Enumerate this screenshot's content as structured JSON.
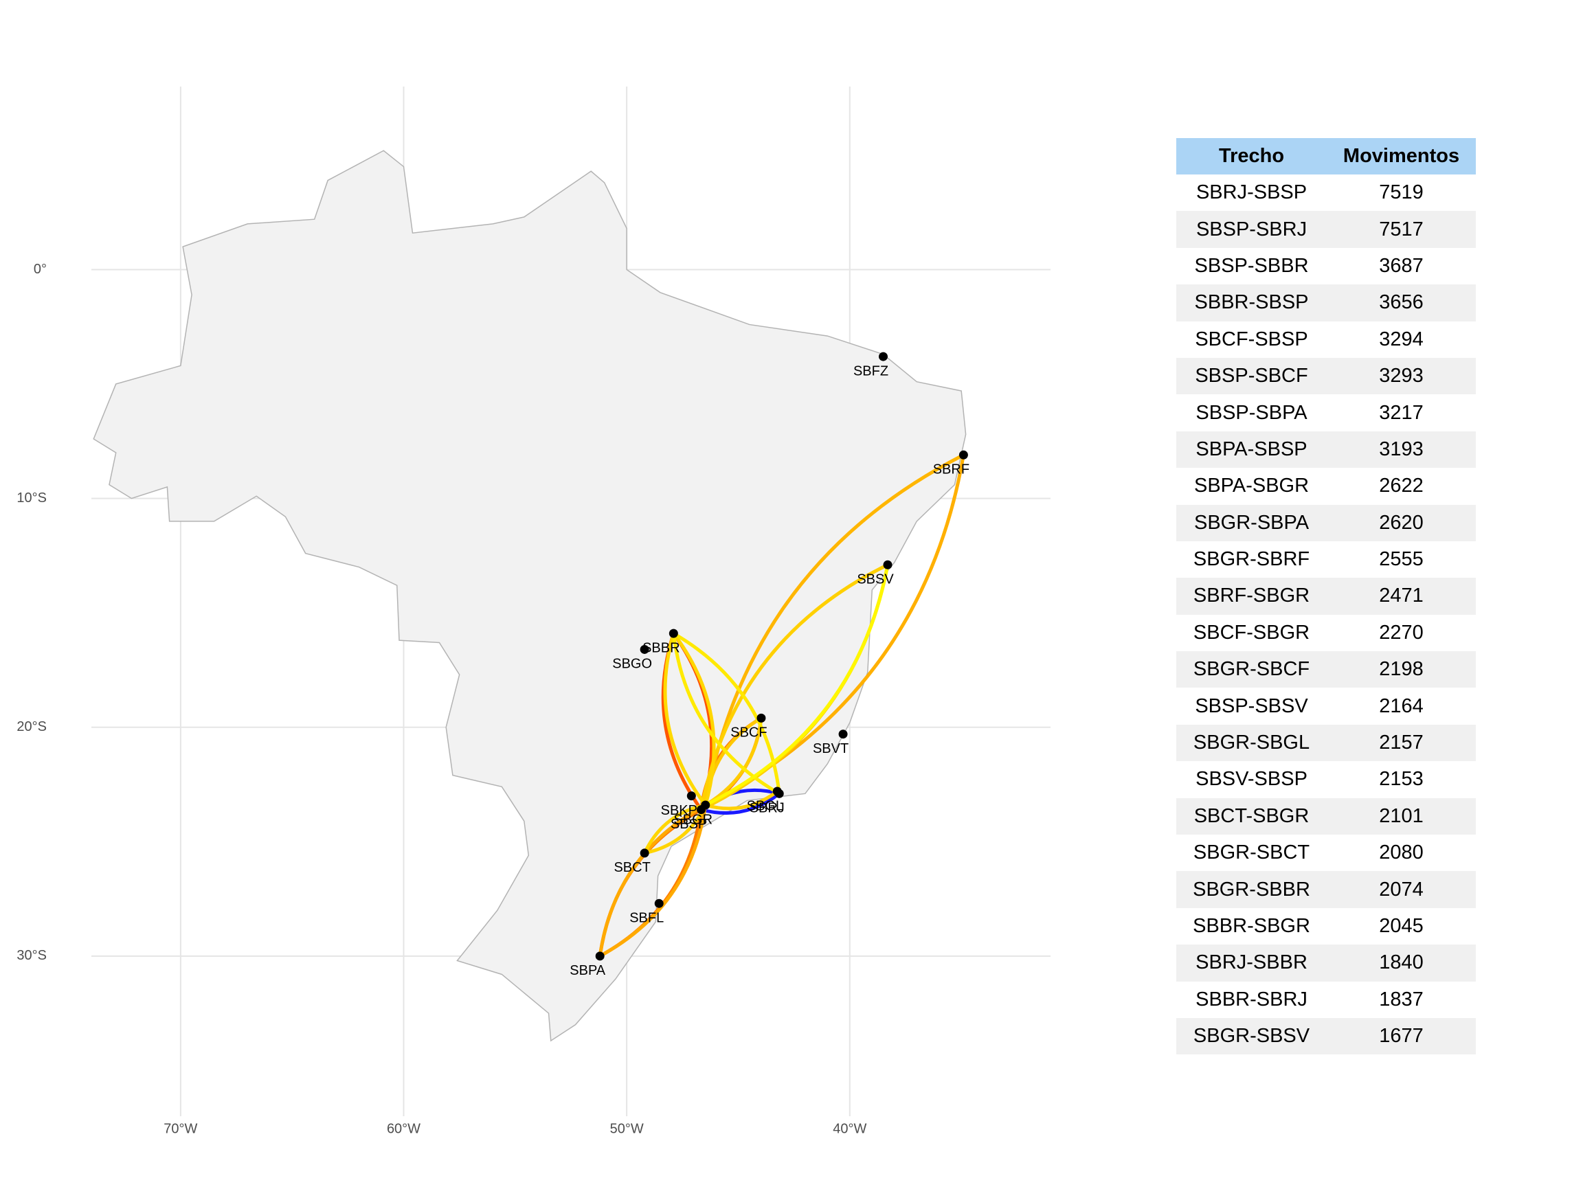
{
  "map": {
    "xlim": [
      -74,
      -31
    ],
    "ylim": [
      -37,
      8
    ],
    "xticks": [
      {
        "value": -70,
        "label": "70°W"
      },
      {
        "value": -60,
        "label": "60°W"
      },
      {
        "value": -50,
        "label": "50°W"
      },
      {
        "value": -40,
        "label": "40°W"
      }
    ],
    "yticks": [
      {
        "value": 0,
        "label": "0°"
      },
      {
        "value": -10,
        "label": "10°S"
      },
      {
        "value": -20,
        "label": "20°S"
      },
      {
        "value": -30,
        "label": "30°S"
      }
    ],
    "airports": [
      {
        "code": "SBFZ",
        "lon": -38.5,
        "lat": -3.8
      },
      {
        "code": "SBRF",
        "lon": -34.9,
        "lat": -8.1
      },
      {
        "code": "SBSV",
        "lon": -38.3,
        "lat": -12.9
      },
      {
        "code": "SBBR",
        "lon": -47.9,
        "lat": -15.9
      },
      {
        "code": "SBGO",
        "lon": -49.2,
        "lat": -16.6
      },
      {
        "code": "SBCF",
        "lon": -43.97,
        "lat": -19.6
      },
      {
        "code": "SBVT",
        "lon": -40.3,
        "lat": -20.3
      },
      {
        "code": "SBGL",
        "lon": -43.25,
        "lat": -22.8
      },
      {
        "code": "SBRJ",
        "lon": -43.16,
        "lat": -22.9
      },
      {
        "code": "SBKP",
        "lon": -47.1,
        "lat": -23.0
      },
      {
        "code": "SBGR",
        "lon": -46.47,
        "lat": -23.4
      },
      {
        "code": "SBSP",
        "lon": -46.66,
        "lat": -23.6
      },
      {
        "code": "SBCT",
        "lon": -49.2,
        "lat": -25.5
      },
      {
        "code": "SBFL",
        "lon": -48.55,
        "lat": -27.7
      },
      {
        "code": "SBPA",
        "lon": -51.2,
        "lat": -30.0
      }
    ]
  },
  "table": {
    "header": [
      "Trecho",
      "Movimentos"
    ],
    "rows": [
      [
        "SBRJ-SBSP",
        7519
      ],
      [
        "SBSP-SBRJ",
        7517
      ],
      [
        "SBSP-SBBR",
        3687
      ],
      [
        "SBBR-SBSP",
        3656
      ],
      [
        "SBCF-SBSP",
        3294
      ],
      [
        "SBSP-SBCF",
        3293
      ],
      [
        "SBSP-SBPA",
        3217
      ],
      [
        "SBPA-SBSP",
        3193
      ],
      [
        "SBPA-SBGR",
        2622
      ],
      [
        "SBGR-SBPA",
        2620
      ],
      [
        "SBGR-SBRF",
        2555
      ],
      [
        "SBRF-SBGR",
        2471
      ],
      [
        "SBCF-SBGR",
        2270
      ],
      [
        "SBGR-SBCF",
        2198
      ],
      [
        "SBSP-SBSV",
        2164
      ],
      [
        "SBGR-SBGL",
        2157
      ],
      [
        "SBSV-SBSP",
        2153
      ],
      [
        "SBCT-SBGR",
        2101
      ],
      [
        "SBGR-SBCT",
        2080
      ],
      [
        "SBGR-SBBR",
        2074
      ],
      [
        "SBBR-SBGR",
        2045
      ],
      [
        "SBRJ-SBBR",
        1840
      ],
      [
        "SBBR-SBRJ",
        1837
      ],
      [
        "SBGR-SBSV",
        1677
      ]
    ]
  }
}
